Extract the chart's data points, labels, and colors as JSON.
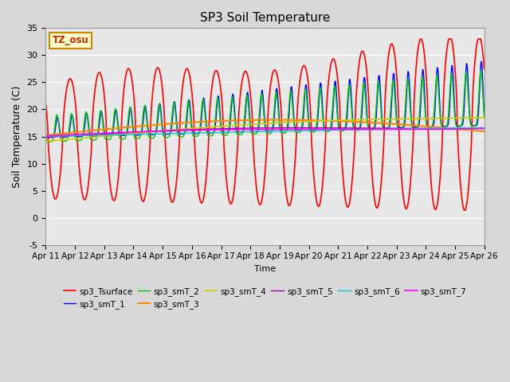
{
  "title": "SP3 Soil Temperature",
  "ylabel": "Soil Temperature (C)",
  "xlabel": "Time",
  "ylim": [
    -5,
    35
  ],
  "fig_bg": "#d8d8d8",
  "plot_bg": "#e8e8e8",
  "annotation_text": "TZ_osu",
  "annotation_color": "#cc2200",
  "annotation_bg": "#ffffcc",
  "annotation_border": "#cc8800",
  "x_ticks": [
    "Apr 11",
    "Apr 12",
    "Apr 13",
    "Apr 14",
    "Apr 15",
    "Apr 16",
    "Apr 17",
    "Apr 18",
    "Apr 19",
    "Apr 20",
    "Apr 21",
    "Apr 22",
    "Apr 23",
    "Apr 24",
    "Apr 25",
    "Apr 26"
  ],
  "yticks": [
    -5,
    0,
    5,
    10,
    15,
    20,
    25,
    30,
    35
  ],
  "series_colors": {
    "sp3_Tsurface": "#ff0000",
    "sp3_smT_1": "#0000ff",
    "sp3_smT_2": "#00cc00",
    "sp3_smT_3": "#ff8800",
    "sp3_smT_4": "#cccc00",
    "sp3_smT_5": "#aa00aa",
    "sp3_smT_6": "#00cccc",
    "sp3_smT_7": "#ff00ff"
  },
  "series_lw": {
    "sp3_Tsurface": 1.2,
    "sp3_smT_1": 1.0,
    "sp3_smT_2": 1.0,
    "sp3_smT_3": 1.5,
    "sp3_smT_4": 1.2,
    "sp3_smT_5": 1.0,
    "sp3_smT_6": 1.0,
    "sp3_smT_7": 1.2
  },
  "n_days": 15,
  "n_pts_per_day": 48
}
